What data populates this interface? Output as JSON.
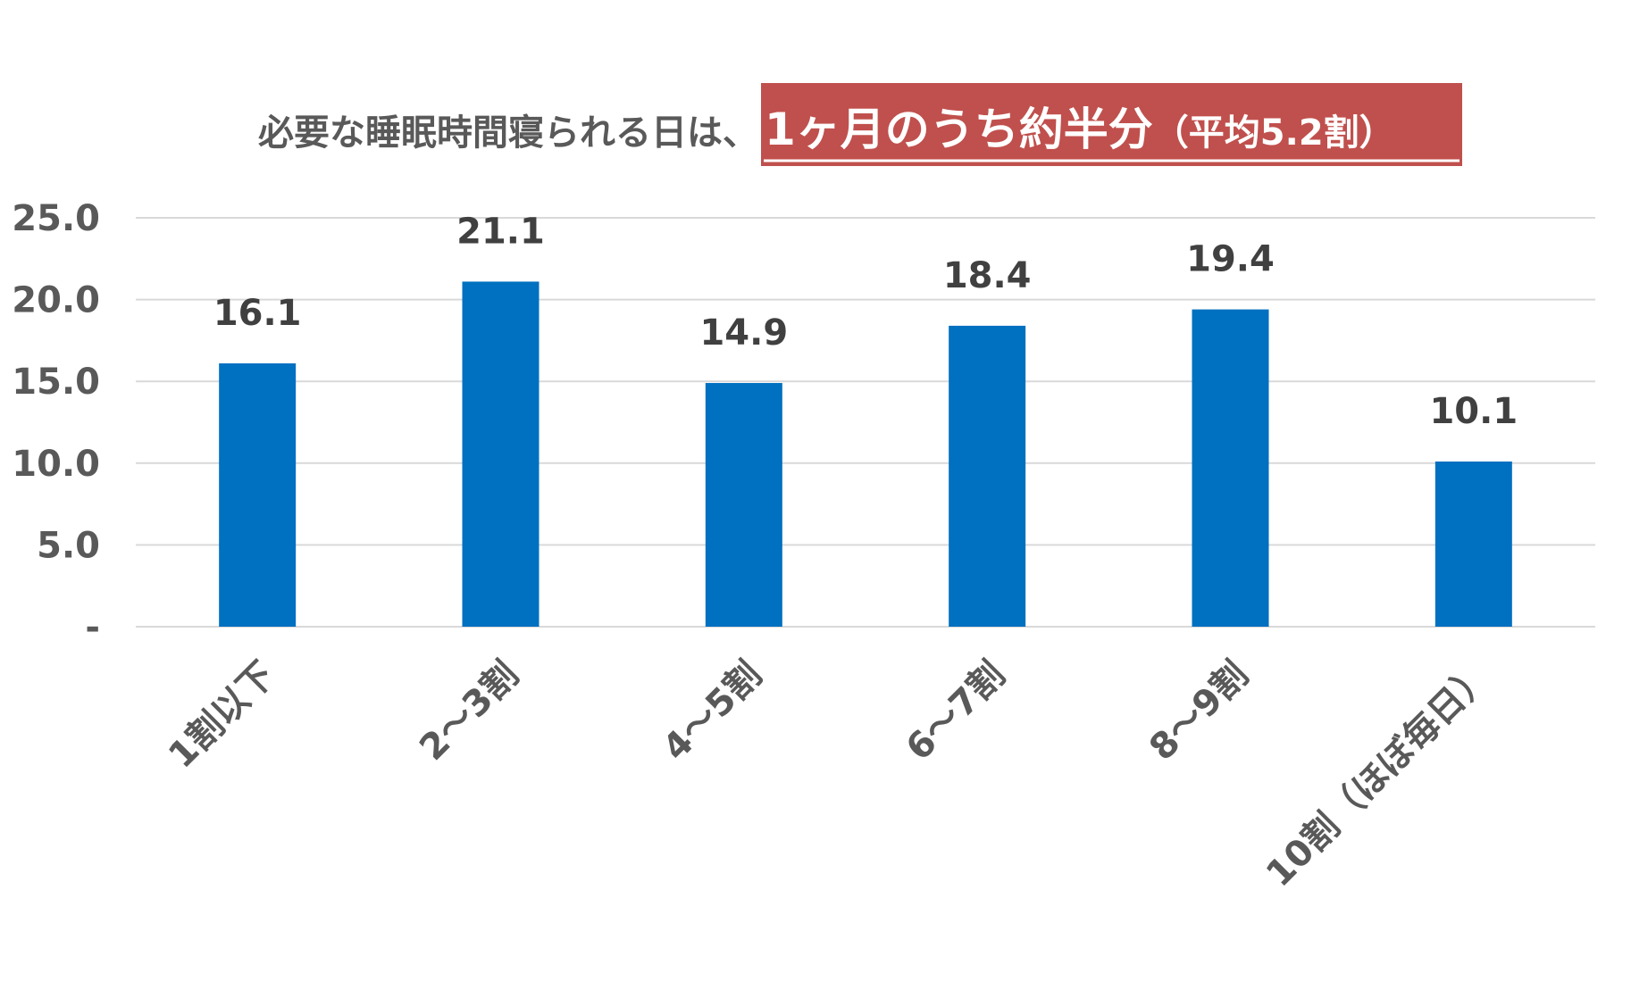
{
  "title": {
    "prefix": "必要な睡眠時間寝られる日は、",
    "highlight_main": "1ヶ月のうち約半分",
    "highlight_sub": "（平均5.2割）"
  },
  "colors": {
    "bar": "#0070C0",
    "title_highlight_bg": "#C0504D",
    "title_text": "#595959",
    "grid": "#D9D9D9",
    "axis_text": "#595959",
    "data_label": "#404040"
  },
  "chart_data": {
    "type": "bar",
    "categories": [
      "1割以下",
      "2～3割",
      "4～5割",
      "6～7割",
      "8～9割",
      "10割（ほぼ毎日）"
    ],
    "values": [
      16.1,
      21.1,
      14.9,
      18.4,
      19.4,
      10.1
    ],
    "data_labels": [
      "16.1",
      "21.1",
      "14.9",
      "18.4",
      "19.4",
      "10.1"
    ],
    "y_ticks": [
      0,
      5,
      10,
      15,
      20,
      25
    ],
    "y_tick_labels": [
      "-",
      "5.0",
      "10.0",
      "15.0",
      "20.0",
      "25.0"
    ],
    "ylim": [
      0,
      25
    ],
    "grid": true,
    "legend": "none"
  }
}
